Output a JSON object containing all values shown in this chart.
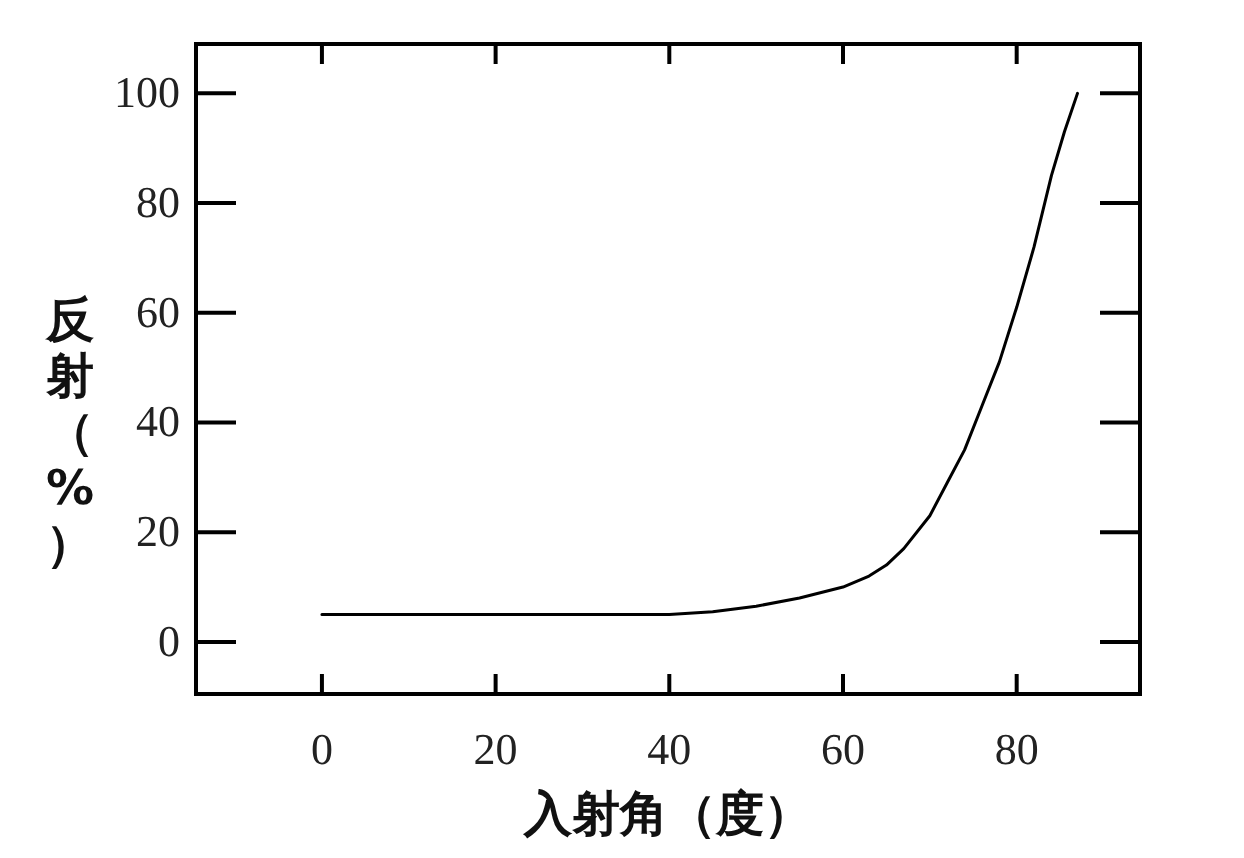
{
  "chart_data": {
    "type": "line",
    "xlabel": "入射角（度）",
    "ylabel": "反射（%）",
    "x": [
      0,
      20,
      40,
      45,
      50,
      55,
      60,
      63,
      65,
      67,
      70,
      72,
      74,
      76,
      78,
      80,
      82,
      84,
      85.5,
      87
    ],
    "values": [
      5,
      5,
      5,
      5.5,
      6.5,
      8,
      10,
      12,
      14,
      17,
      23,
      29,
      35,
      43,
      51,
      61,
      72,
      85,
      93,
      100
    ],
    "color": "#000000",
    "xlim": [
      -14.5,
      94.2
    ],
    "ylim": [
      -9.5,
      109
    ],
    "xticks": [
      0,
      20,
      40,
      60,
      80
    ],
    "yticks": [
      0,
      20,
      40,
      60,
      80,
      100
    ]
  }
}
